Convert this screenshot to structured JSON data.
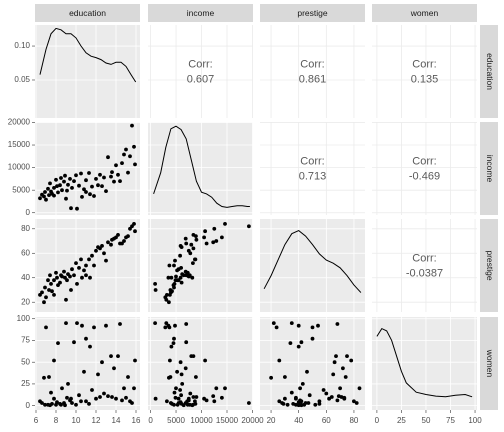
{
  "chart_data": {
    "type": "pairs",
    "variables": [
      "education",
      "income",
      "prestige",
      "women"
    ],
    "corr_label": "Corr:",
    "correlations": [
      0.607,
      0.861,
      0.135,
      0.713,
      -0.469,
      -0.0387
    ],
    "axes": [
      {
        "lim": [
          5.9,
          16.4
        ],
        "ticks": [
          6,
          8,
          10,
          12,
          14,
          16
        ]
      },
      {
        "lim": [
          -500,
          20100
        ],
        "ticks": [
          0,
          5000,
          10000,
          15000,
          20000
        ]
      },
      {
        "lim": [
          12,
          88
        ],
        "ticks": [
          20,
          40,
          60,
          80
        ]
      },
      {
        "lim": [
          -5,
          102
        ],
        "ticks": [
          0,
          25,
          50,
          75,
          100
        ]
      }
    ],
    "densities": [
      {
        "x": [
          6.4,
          7,
          7.5,
          8,
          8.5,
          9,
          9.5,
          10,
          10.5,
          11,
          11.5,
          12,
          12.5,
          13,
          13.5,
          14,
          14.5,
          15,
          15.5,
          15.97
        ],
        "y": [
          0.058,
          0.095,
          0.118,
          0.126,
          0.124,
          0.118,
          0.118,
          0.112,
          0.1,
          0.09,
          0.085,
          0.083,
          0.08,
          0.075,
          0.073,
          0.076,
          0.076,
          0.07,
          0.058,
          0.047
        ],
        "ylim": [
          -0.006,
          0.131
        ],
        "yticks": [
          0.05,
          {
            "value": 0.1,
            "label": "0.10"
          }
        ]
      },
      {
        "x": [
          600,
          2000,
          3000,
          4000,
          5000,
          6000,
          7000,
          8000,
          9000,
          10000,
          11000,
          12000,
          13000,
          14000,
          15000,
          16000,
          17000,
          18000,
          19000,
          19500
        ],
        "y": [
          0.2,
          0.45,
          0.75,
          0.97,
          1.0,
          0.96,
          0.85,
          0.6,
          0.35,
          0.22,
          0.2,
          0.16,
          0.09,
          0.05,
          0.04,
          0.05,
          0.06,
          0.06,
          0.05,
          0.05
        ],
        "ylim": [
          -0.05,
          1.05
        ]
      },
      {
        "x": [
          15,
          20,
          25,
          30,
          35,
          40,
          45,
          50,
          55,
          60,
          65,
          70,
          75,
          80,
          85
        ],
        "y": [
          0.25,
          0.42,
          0.62,
          0.82,
          0.96,
          1.0,
          0.93,
          0.82,
          0.7,
          0.62,
          0.58,
          0.52,
          0.42,
          0.3,
          0.2
        ],
        "ylim": [
          -0.05,
          1.15
        ]
      },
      {
        "x": [
          0,
          5,
          10,
          15,
          20,
          25,
          30,
          40,
          50,
          60,
          70,
          80,
          90,
          97
        ],
        "y": [
          0.9,
          1.0,
          0.97,
          0.85,
          0.65,
          0.45,
          0.3,
          0.18,
          0.15,
          0.13,
          0.12,
          0.14,
          0.15,
          0.12
        ],
        "ylim": [
          -0.05,
          1.15
        ]
      }
    ],
    "values": [
      [
        6.4,
        6.6,
        6.8,
        6.9,
        7.0,
        7.2,
        7.3,
        7.4,
        7.5,
        7.6,
        7.8,
        7.8,
        8.0,
        8.1,
        8.2,
        8.4,
        8.5,
        8.6,
        8.8,
        8.9,
        9.0,
        9.1,
        9.2,
        9.4,
        9.5,
        9.6,
        9.8,
        10.0,
        10.1,
        10.3,
        10.5,
        10.6,
        10.8,
        11.0,
        11.0,
        11.3,
        11.4,
        11.6,
        11.8,
        12.0,
        12.2,
        12.4,
        12.6,
        12.8,
        13.0,
        13.2,
        13.5,
        13.6,
        13.8,
        14.0,
        14.2,
        14.4,
        14.6,
        14.8,
        15.0,
        15.2,
        15.4,
        15.6,
        15.8,
        15.9
      ],
      [
        3200,
        4000,
        3600,
        4600,
        2900,
        5300,
        3900,
        6500,
        4700,
        4200,
        5500,
        3800,
        7300,
        5900,
        4500,
        6100,
        7700,
        5000,
        6900,
        8200,
        3100,
        4900,
        6200,
        7500,
        1000,
        5500,
        7000,
        8300,
        900,
        6000,
        8700,
        3500,
        5200,
        7200,
        4600,
        8800,
        4100,
        5800,
        3700,
        7500,
        6100,
        8400,
        5900,
        7800,
        4800,
        12300,
        8000,
        9000,
        6900,
        10500,
        8400,
        7000,
        11000,
        12900,
        14000,
        8900,
        12500,
        19300,
        14600,
        10700
      ],
      [
        26,
        28,
        20,
        32,
        24,
        38,
        30,
        42,
        35,
        29,
        38,
        26,
        44,
        40,
        34,
        36,
        42,
        41,
        45,
        40,
        22,
        38,
        43,
        41,
        30,
        47,
        42,
        52,
        35,
        48,
        55,
        40,
        46,
        42,
        50,
        55,
        40,
        58,
        50,
        62,
        65,
        64,
        66,
        60,
        54,
        69,
        67,
        71,
        72,
        73,
        75,
        68,
        68,
        70,
        73,
        74,
        80,
        82,
        84,
        78
      ],
      [
        5,
        3,
        32,
        1,
        90,
        1,
        33,
        0.5,
        15,
        2,
        8,
        52,
        1,
        4,
        72,
        2,
        1,
        20,
        3,
        0.5,
        95,
        9,
        25,
        6,
        8,
        3,
        73,
        1,
        95,
        12,
        5,
        92,
        39,
        5,
        77,
        2,
        68,
        18,
        90,
        8,
        36,
        10,
        50,
        14,
        92,
        11,
        57,
        10,
        43,
        8,
        57,
        94,
        6,
        20,
        9,
        33,
        5,
        3,
        20,
        52
      ]
    ],
    "point_color": "#000000",
    "line_color": "#000000",
    "grid": true
  }
}
